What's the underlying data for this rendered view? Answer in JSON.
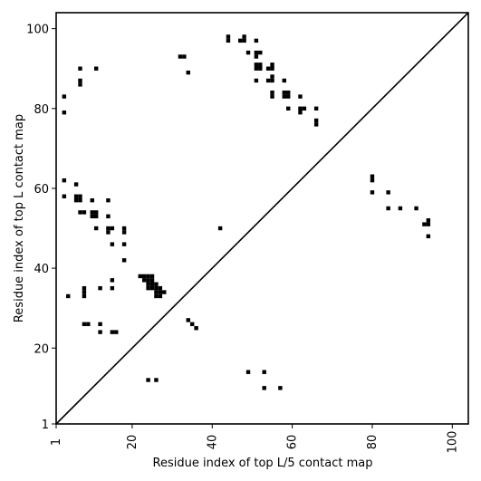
{
  "chart_data": {
    "type": "scatter",
    "marker": "square",
    "xlabel": "Residue index of top L/5 contact map",
    "ylabel": "Residue index of top L contact map",
    "xlim": [
      1,
      104
    ],
    "ylim": [
      1,
      104
    ],
    "xticks": [
      1,
      20,
      40,
      60,
      80,
      100
    ],
    "yticks": [
      1,
      20,
      40,
      60,
      80,
      100
    ],
    "diagonal": true,
    "grid": false,
    "colors": {
      "points": "#000000",
      "axes": "#000000",
      "background": "#ffffff"
    },
    "points": [
      [
        44,
        98
      ],
      [
        44,
        97
      ],
      [
        47,
        97
      ],
      [
        48,
        98
      ],
      [
        48,
        97
      ],
      [
        51,
        97
      ],
      [
        49,
        94
      ],
      [
        51,
        94
      ],
      [
        51,
        93
      ],
      [
        52,
        94
      ],
      [
        51,
        91
      ],
      [
        51,
        90
      ],
      [
        52,
        91
      ],
      [
        52,
        90
      ],
      [
        54,
        90
      ],
      [
        55,
        91
      ],
      [
        55,
        90
      ],
      [
        54,
        87
      ],
      [
        55,
        88
      ],
      [
        55,
        87
      ],
      [
        51,
        87
      ],
      [
        58,
        87
      ],
      [
        55,
        84
      ],
      [
        55,
        83
      ],
      [
        58,
        84
      ],
      [
        58,
        83
      ],
      [
        59,
        84
      ],
      [
        59,
        83
      ],
      [
        62,
        83
      ],
      [
        59,
        80
      ],
      [
        62,
        80
      ],
      [
        62,
        79
      ],
      [
        63,
        80
      ],
      [
        66,
        80
      ],
      [
        66,
        77
      ],
      [
        66,
        76
      ],
      [
        32,
        93
      ],
      [
        33,
        93
      ],
      [
        34,
        89
      ],
      [
        7,
        90
      ],
      [
        11,
        90
      ],
      [
        7,
        87
      ],
      [
        7,
        86
      ],
      [
        3,
        83
      ],
      [
        3,
        79
      ],
      [
        3,
        62
      ],
      [
        6,
        61
      ],
      [
        3,
        58
      ],
      [
        6,
        58
      ],
      [
        7,
        58
      ],
      [
        6,
        57
      ],
      [
        7,
        57
      ],
      [
        10,
        57
      ],
      [
        14,
        57
      ],
      [
        7,
        54
      ],
      [
        8,
        54
      ],
      [
        10,
        54
      ],
      [
        11,
        54
      ],
      [
        10,
        53
      ],
      [
        11,
        53
      ],
      [
        14,
        53
      ],
      [
        11,
        50
      ],
      [
        14,
        50
      ],
      [
        15,
        50
      ],
      [
        18,
        50
      ],
      [
        14,
        49
      ],
      [
        18,
        49
      ],
      [
        15,
        46
      ],
      [
        18,
        46
      ],
      [
        18,
        42
      ],
      [
        42,
        50
      ],
      [
        22,
        38
      ],
      [
        23,
        38
      ],
      [
        24,
        38
      ],
      [
        25,
        38
      ],
      [
        23,
        37
      ],
      [
        24,
        37
      ],
      [
        25,
        37
      ],
      [
        15,
        37
      ],
      [
        24,
        36
      ],
      [
        25,
        36
      ],
      [
        24,
        35
      ],
      [
        25,
        35
      ],
      [
        26,
        36
      ],
      [
        26,
        35
      ],
      [
        27,
        35
      ],
      [
        26,
        34
      ],
      [
        27,
        34
      ],
      [
        28,
        34
      ],
      [
        26,
        33
      ],
      [
        27,
        33
      ],
      [
        8,
        35
      ],
      [
        8,
        34
      ],
      [
        8,
        33
      ],
      [
        12,
        35
      ],
      [
        15,
        35
      ],
      [
        4,
        33
      ],
      [
        8,
        26
      ],
      [
        9,
        26
      ],
      [
        12,
        26
      ],
      [
        12,
        24
      ],
      [
        15,
        24
      ],
      [
        16,
        24
      ],
      [
        34,
        27
      ],
      [
        35,
        26
      ],
      [
        36,
        25
      ],
      [
        80,
        63
      ],
      [
        80,
        62
      ],
      [
        80,
        59
      ],
      [
        84,
        59
      ],
      [
        84,
        55
      ],
      [
        87,
        55
      ],
      [
        91,
        55
      ],
      [
        93,
        51
      ],
      [
        94,
        52
      ],
      [
        94,
        51
      ],
      [
        94,
        48
      ],
      [
        49,
        14
      ],
      [
        53,
        14
      ],
      [
        24,
        12
      ],
      [
        26,
        12
      ],
      [
        53,
        10
      ],
      [
        57,
        10
      ]
    ]
  }
}
